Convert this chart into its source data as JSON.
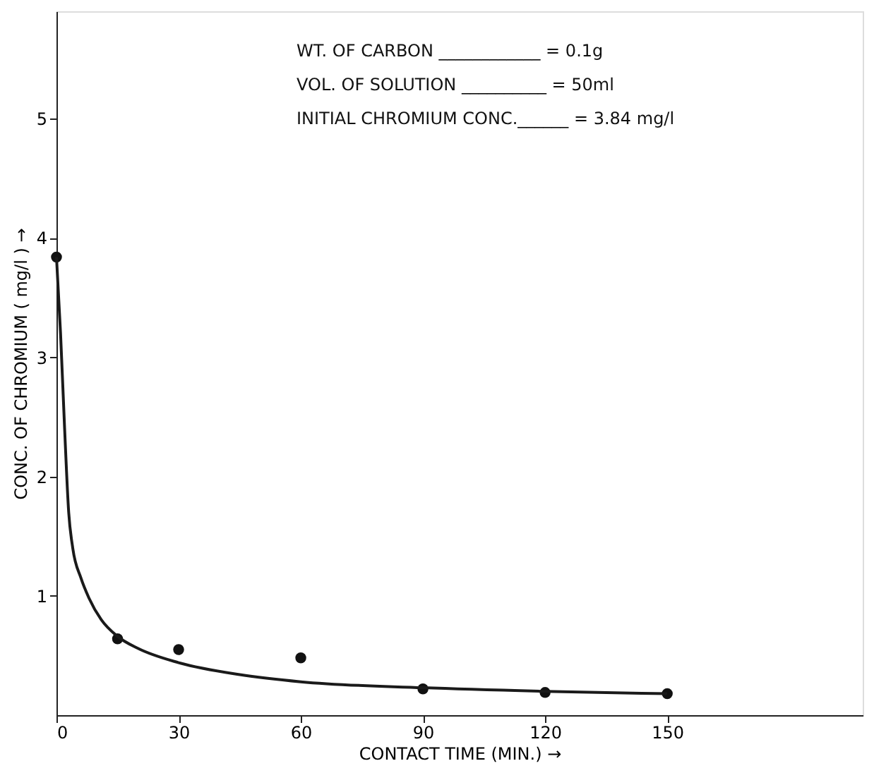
{
  "chart_data": {
    "type": "scatter",
    "xlabel": "CONTACT TIME (MIN.) →",
    "ylabel": "CONC. OF CHROMIUM ( mg/l ) →",
    "annotations": [
      "WT. OF CARBON ____________ = 0.1g",
      "VOL. OF SOLUTION __________ = 50ml",
      "INITIAL CHROMIUM CONC.______ = 3.84 mg/l"
    ],
    "series": [
      {
        "color": "#111111",
        "x": [
          0,
          15,
          30,
          60,
          90,
          120,
          150
        ],
        "values": [
          3.84,
          0.64,
          0.55,
          0.48,
          0.22,
          0.19,
          0.18
        ]
      },
      {
        "type": "line",
        "marker": "none",
        "color": "#1a1a1a",
        "x": [
          0,
          1,
          2,
          3,
          4,
          6,
          8,
          11,
          15,
          20,
          30,
          45,
          60,
          90,
          120,
          150
        ],
        "values": [
          3.84,
          3.2,
          2.4,
          1.7,
          1.4,
          1.15,
          0.98,
          0.8,
          0.66,
          0.56,
          0.44,
          0.34,
          0.28,
          0.23,
          0.2,
          0.18
        ]
      }
    ],
    "xlim": [
      0,
      198
    ],
    "ylim": [
      0,
      5.9
    ],
    "xticks": [
      0,
      30,
      60,
      90,
      120,
      150
    ],
    "yticks": [
      1,
      2,
      3,
      4,
      5
    ],
    "grid": false,
    "marker": "circle",
    "line_style": "solid"
  }
}
